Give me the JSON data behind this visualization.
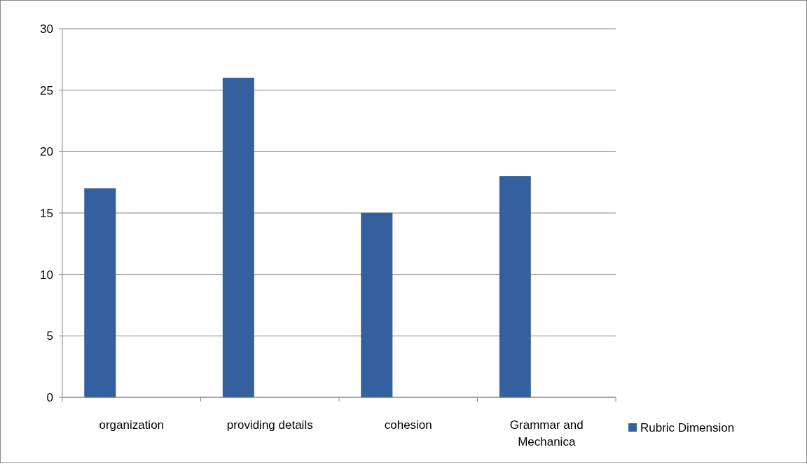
{
  "chart_data": {
    "type": "bar",
    "categories": [
      "organization",
      "providing details",
      "cohesion",
      "Grammar and Mechanica"
    ],
    "series": [
      {
        "name": "Rubric Dimension",
        "color": "#33609f",
        "values": [
          17,
          26,
          15,
          18
        ]
      }
    ],
    "ylim": [
      0,
      30
    ],
    "yticks": [
      0,
      5,
      10,
      15,
      20,
      25,
      30
    ],
    "grid": "y",
    "legend": "right"
  }
}
